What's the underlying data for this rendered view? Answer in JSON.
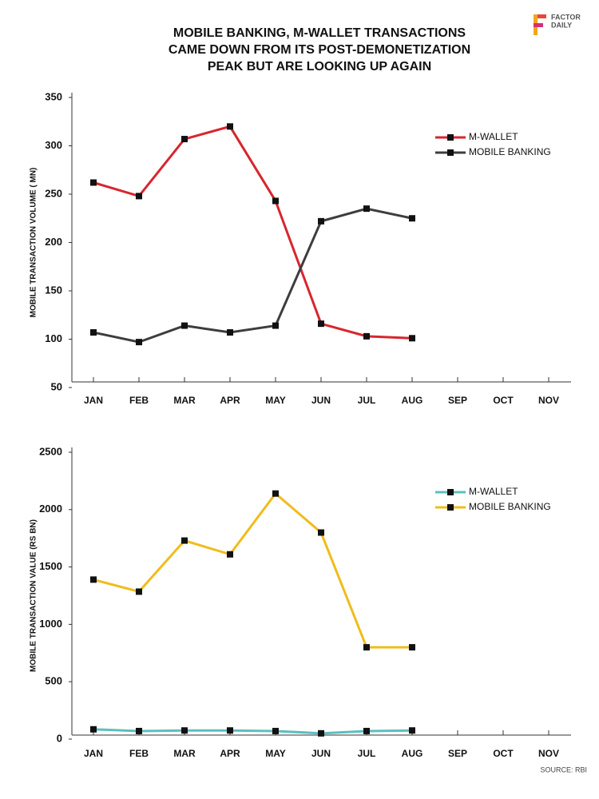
{
  "title": [
    "MOBILE BANKING, M-WALLET TRANSACTIONS",
    "CAME DOWN FROM ITS POST-DEMONETIZATION",
    "PEAK BUT ARE LOOKING UP AGAIN"
  ],
  "logo": [
    "FACTOR",
    "DAILY"
  ],
  "source": "SOURCE: RBI",
  "chart_data": [
    {
      "type": "line",
      "y_label": "MOBILE  TRANSACTION VOLUME ( MN)",
      "categories": [
        "JAN",
        "FEB",
        "MAR",
        "APR",
        "MAY",
        "JUN",
        "JUL",
        "AUG",
        "SEP",
        "OCT",
        "NOV"
      ],
      "series": [
        {
          "name": "M-WALLET",
          "color": "#d7262e",
          "values": [
            262,
            248,
            307,
            320,
            243,
            116,
            103,
            101,
            null,
            null,
            null
          ]
        },
        {
          "name": "MOBILE BANKING",
          "color": "#3d3d3d",
          "values": [
            107,
            97,
            114,
            107,
            114,
            222,
            235,
            225,
            null,
            null,
            null
          ]
        }
      ],
      "ylim": [
        50,
        350
      ],
      "yticks": [
        50,
        100,
        150,
        200,
        250,
        300,
        350
      ],
      "legend": "upper right",
      "grid": false
    },
    {
      "type": "line",
      "y_label": "MOBILE  TRANSACTION VALUE (RS BN)",
      "categories": [
        "JAN",
        "FEB",
        "MAR",
        "APR",
        "MAY",
        "JUN",
        "JUL",
        "AUG",
        "SEP",
        "OCT",
        "NOV"
      ],
      "series": [
        {
          "name": "M-WALLET",
          "color": "#5bbfc0",
          "values": [
            85,
            70,
            75,
            75,
            70,
            50,
            70,
            75,
            null,
            null,
            null
          ]
        },
        {
          "name": "MOBILE BANKING",
          "color": "#f0bc1c",
          "values": [
            1390,
            1285,
            1730,
            1610,
            2140,
            1800,
            800,
            800,
            null,
            null,
            null
          ]
        }
      ],
      "ylim": [
        0,
        2500
      ],
      "yticks": [
        0,
        500,
        1000,
        1500,
        2000,
        2500
      ],
      "legend": "upper right",
      "grid": false
    }
  ]
}
